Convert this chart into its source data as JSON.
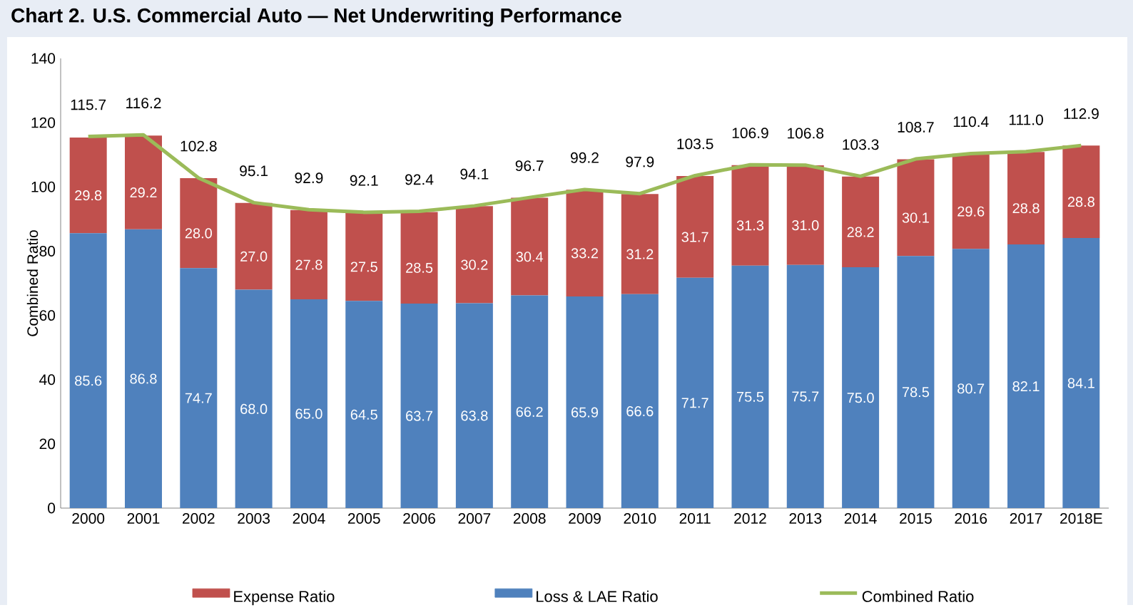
{
  "chart_data": {
    "type": "bar",
    "stacked": true,
    "title": "Chart 2. U.S. Commercial Auto — Net Underwriting Performance",
    "ylabel": "Combined Ratio",
    "categories": [
      "2000",
      "2001",
      "2002",
      "2003",
      "2004",
      "2005",
      "2006",
      "2007",
      "2008",
      "2009",
      "2010",
      "2011",
      "2012",
      "2013",
      "2014",
      "2015",
      "2016",
      "2017",
      "2018E"
    ],
    "series": [
      {
        "name": "Loss & LAE Ratio",
        "color": "#4f81bd",
        "values": [
          85.6,
          86.8,
          74.7,
          68.0,
          65.0,
          64.5,
          63.7,
          63.8,
          66.2,
          65.9,
          66.6,
          71.7,
          75.5,
          75.7,
          75.0,
          78.5,
          80.7,
          82.1,
          84.1
        ],
        "value_labels": [
          "85.6",
          "86.8",
          "74.7",
          "68.0",
          "65.0",
          "64.5",
          "63.7",
          "63.8",
          "66.2",
          "65.9",
          "66.6",
          "71.7",
          "75.5",
          "75.7",
          "75.0",
          "78.5",
          "80.7",
          "82.1",
          "84.1"
        ]
      },
      {
        "name": "Expense Ratio",
        "color": "#c0504d",
        "values": [
          29.8,
          29.2,
          28.0,
          27.0,
          27.8,
          27.5,
          28.5,
          30.2,
          30.4,
          33.2,
          31.2,
          31.7,
          31.3,
          31.0,
          28.2,
          30.1,
          29.6,
          28.8,
          28.8
        ],
        "value_labels": [
          "29.8",
          "29.2",
          "28.0",
          "27.0",
          "27.8",
          "27.5",
          "28.5",
          "30.2",
          "30.4",
          "33.2",
          "31.2",
          "31.7",
          "31.3",
          "31.0",
          "28.2",
          "30.1",
          "29.6",
          "28.8",
          "28.8"
        ]
      },
      {
        "name": "Combined Ratio",
        "type": "line",
        "color": "#9bbb59",
        "values": [
          115.7,
          116.2,
          102.8,
          95.1,
          92.9,
          92.1,
          92.4,
          94.1,
          96.7,
          99.2,
          97.9,
          103.5,
          106.9,
          106.8,
          103.3,
          108.7,
          110.4,
          111.0,
          112.9
        ],
        "value_labels": [
          "115.7",
          "116.2",
          "102.8",
          "95.1",
          "92.9",
          "92.1",
          "92.4",
          "94.1",
          "96.7",
          "99.2",
          "97.9",
          "103.5",
          "106.9",
          "106.8",
          "103.3",
          "108.7",
          "110.4",
          "111.0",
          "112.9"
        ]
      }
    ],
    "ylim": [
      0,
      140
    ],
    "yticks": [
      0,
      20,
      40,
      60,
      80,
      100,
      120,
      140
    ],
    "legend": "bottom",
    "marker": "none"
  }
}
